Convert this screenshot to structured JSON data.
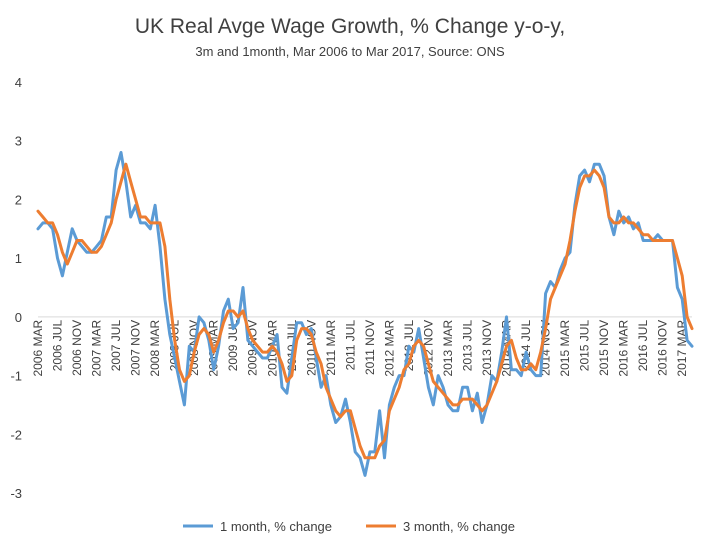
{
  "chart_data": {
    "type": "line",
    "title": "UK Real Avge Wage Growth, % Change y-o-y,",
    "subtitle": "3m and 1month, Mar 2006 to Mar 2017, Source: ONS",
    "xlabel": "",
    "ylabel": "",
    "ylim": [
      -3,
      4
    ],
    "yticks": [
      4,
      3,
      2,
      1,
      0,
      -1,
      -2,
      -3
    ],
    "ytick_labels": [
      "4",
      "3",
      "2",
      "1",
      "0",
      "-1",
      "-2",
      "-3"
    ],
    "grid": false,
    "legend_position": "bottom",
    "x_tick_labels": [
      "2006 MAR",
      "2006 JUL",
      "2006 NOV",
      "2007 MAR",
      "2007 JUL",
      "2007 NOV",
      "2008 MAR",
      "2008 JUL",
      "2008 NOV",
      "2009 MAR",
      "2009 JUL",
      "2009 NOV",
      "2010 MAR",
      "2010 JUL",
      "2010 NOV",
      "2011 MAR",
      "2011 JUL",
      "2011 NOV",
      "2012 MAR",
      "2012 JUL",
      "2012 NOV",
      "2013 MAR",
      "2013 JUL",
      "2013 NOV",
      "2014 MAR",
      "2014 JUL",
      "2014 NOV",
      "2015 MAR",
      "2015 JUL",
      "2015 NOV",
      "2016 MAR",
      "2016 JUL",
      "2016 NOV",
      "2017 MAR"
    ],
    "series": [
      {
        "name": "1 month, % change",
        "color": "#5b9bd5",
        "values": [
          1.5,
          1.6,
          1.6,
          1.5,
          1.0,
          0.7,
          1.1,
          1.5,
          1.3,
          1.2,
          1.1,
          1.1,
          1.2,
          1.3,
          1.7,
          1.7,
          2.5,
          2.8,
          2.3,
          1.7,
          1.9,
          1.6,
          1.6,
          1.5,
          1.9,
          1.2,
          0.3,
          -0.3,
          -0.7,
          -1.1,
          -1.5,
          -0.5,
          -0.6,
          0.0,
          -0.1,
          -0.4,
          -0.9,
          -0.5,
          0.1,
          0.3,
          -0.2,
          -0.1,
          0.5,
          -0.4,
          -0.5,
          -0.6,
          -0.7,
          -0.7,
          -0.5,
          -0.3,
          -1.2,
          -1.3,
          -0.7,
          -0.1,
          -0.1,
          -0.3,
          -0.2,
          -0.7,
          -1.2,
          -1.0,
          -1.5,
          -1.8,
          -1.7,
          -1.4,
          -1.8,
          -2.3,
          -2.4,
          -2.7,
          -2.3,
          -2.3,
          -1.6,
          -2.4,
          -1.5,
          -1.2,
          -1.0,
          -1.0,
          -0.5,
          -0.6,
          -0.2,
          -0.7,
          -1.2,
          -1.5,
          -1.0,
          -1.2,
          -1.5,
          -1.6,
          -1.6,
          -1.2,
          -1.2,
          -1.6,
          -1.3,
          -1.8,
          -1.5,
          -1.0,
          -1.1,
          -0.6,
          0.0,
          -0.9,
          -0.9,
          -1.0,
          -0.6,
          -0.9,
          -1.0,
          -1.0,
          0.4,
          0.6,
          0.5,
          0.8,
          1.0,
          1.1,
          1.9,
          2.4,
          2.5,
          2.3,
          2.6,
          2.6,
          2.4,
          1.7,
          1.4,
          1.8,
          1.6,
          1.7,
          1.5,
          1.6,
          1.3,
          1.3,
          1.3,
          1.4,
          1.3,
          1.3,
          1.3,
          0.5,
          0.3,
          -0.4,
          -0.5
        ]
      },
      {
        "name": "3 month, % change",
        "color": "#ed7d31",
        "values": [
          1.8,
          1.7,
          1.6,
          1.6,
          1.4,
          1.1,
          0.9,
          1.1,
          1.3,
          1.3,
          1.2,
          1.1,
          1.1,
          1.2,
          1.4,
          1.6,
          2.0,
          2.3,
          2.6,
          2.3,
          2.0,
          1.7,
          1.7,
          1.6,
          1.6,
          1.6,
          1.2,
          0.3,
          -0.4,
          -0.9,
          -1.1,
          -1.0,
          -0.6,
          -0.3,
          -0.2,
          -0.3,
          -0.6,
          -0.4,
          -0.1,
          0.1,
          0.1,
          0.0,
          0.1,
          -0.2,
          -0.4,
          -0.5,
          -0.6,
          -0.6,
          -0.5,
          -0.6,
          -0.8,
          -1.1,
          -1.0,
          -0.4,
          -0.2,
          -0.2,
          -0.3,
          -0.6,
          -0.8,
          -1.2,
          -1.4,
          -1.6,
          -1.7,
          -1.6,
          -1.6,
          -1.9,
          -2.2,
          -2.4,
          -2.4,
          -2.4,
          -2.2,
          -2.1,
          -1.6,
          -1.4,
          -1.2,
          -0.9,
          -0.8,
          -0.5,
          -0.4,
          -0.5,
          -0.8,
          -1.1,
          -1.2,
          -1.3,
          -1.4,
          -1.5,
          -1.5,
          -1.4,
          -1.4,
          -1.4,
          -1.5,
          -1.6,
          -1.5,
          -1.3,
          -1.1,
          -0.8,
          -0.5,
          -0.4,
          -0.7,
          -0.9,
          -0.9,
          -0.8,
          -0.9,
          -0.6,
          -0.2,
          0.3,
          0.5,
          0.7,
          0.9,
          1.3,
          1.8,
          2.2,
          2.4,
          2.4,
          2.5,
          2.4,
          2.2,
          1.7,
          1.6,
          1.6,
          1.7,
          1.6,
          1.6,
          1.5,
          1.4,
          1.4,
          1.3,
          1.3,
          1.3,
          1.3,
          1.3,
          1.0,
          0.7,
          0.0,
          -0.2
        ]
      }
    ]
  }
}
